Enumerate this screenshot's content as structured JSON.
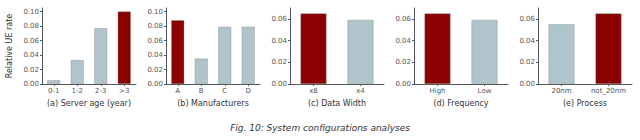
{
  "title": "Fig. 10: System configurations analyses",
  "chart_data": [
    {
      "type": "bar",
      "categories": [
        "0-1",
        "1-2",
        "2-3",
        ">3"
      ],
      "values": [
        0.005,
        0.033,
        0.077,
        0.1
      ],
      "colors": [
        "#b0c4cc",
        "#b0c4cc",
        "#b0c4cc",
        "#8b0000"
      ],
      "xlabel": "(a) Server age (year)",
      "ylabel": "Relative UE rate",
      "ylim": [
        0,
        0.105
      ],
      "yticks": [
        {
          "value": 0.0,
          "label": "0.00"
        },
        {
          "value": 0.02,
          "label": "0.02"
        },
        {
          "value": 0.04,
          "label": "0.04"
        },
        {
          "value": 0.06,
          "label": "0.06"
        },
        {
          "value": 0.08,
          "label": "0.08"
        },
        {
          "value": 0.1,
          "label": "0.10"
        }
      ],
      "grid": false
    },
    {
      "type": "bar",
      "categories": [
        "A",
        "B",
        "C",
        "D"
      ],
      "values": [
        0.088,
        0.035,
        0.079,
        0.079
      ],
      "colors": [
        "#8b0000",
        "#b0c4cc",
        "#b0c4cc",
        "#b0c4cc"
      ],
      "xlabel": "(b) Manufacturers",
      "ylim": [
        0,
        0.105
      ],
      "yticks": [
        {
          "value": 0.0,
          "label": "0.00"
        },
        {
          "value": 0.02,
          "label": "0.02"
        },
        {
          "value": 0.04,
          "label": "0.04"
        },
        {
          "value": 0.06,
          "label": "0.06"
        },
        {
          "value": 0.08,
          "label": "0.08"
        },
        {
          "value": 0.1,
          "label": "0.10"
        }
      ],
      "grid": false
    },
    {
      "type": "bar",
      "categories": [
        "x8",
        "x4"
      ],
      "values": [
        0.065,
        0.059
      ],
      "colors": [
        "#8b0000",
        "#b0c4cc"
      ],
      "xlabel": "(c) Data Width",
      "ylim": [
        0,
        0.07
      ],
      "yticks": [
        {
          "value": 0.0,
          "label": "0.00"
        },
        {
          "value": 0.02,
          "label": "0.02"
        },
        {
          "value": 0.04,
          "label": "0.04"
        },
        {
          "value": 0.06,
          "label": "0.06"
        }
      ],
      "grid": false
    },
    {
      "type": "bar",
      "categories": [
        "High",
        "Low"
      ],
      "values": [
        0.065,
        0.059
      ],
      "colors": [
        "#8b0000",
        "#b0c4cc"
      ],
      "xlabel": "(d) Frequency",
      "ylim": [
        0,
        0.07
      ],
      "yticks": [
        {
          "value": 0.0,
          "label": "0.00"
        },
        {
          "value": 0.02,
          "label": "0.02"
        },
        {
          "value": 0.04,
          "label": "0.04"
        },
        {
          "value": 0.06,
          "label": "0.06"
        }
      ],
      "grid": false
    },
    {
      "type": "bar",
      "categories": [
        "20nm",
        "not_20nm"
      ],
      "values": [
        0.055,
        0.065
      ],
      "colors": [
        "#b0c4cc",
        "#8b0000"
      ],
      "xlabel": "(e) Process",
      "ylim": [
        0,
        0.07
      ],
      "yticks": [
        {
          "value": 0.0,
          "label": "0.00"
        },
        {
          "value": 0.02,
          "label": "0.02"
        },
        {
          "value": 0.04,
          "label": "0.04"
        },
        {
          "value": 0.06,
          "label": "0.06"
        }
      ],
      "grid": false
    }
  ]
}
